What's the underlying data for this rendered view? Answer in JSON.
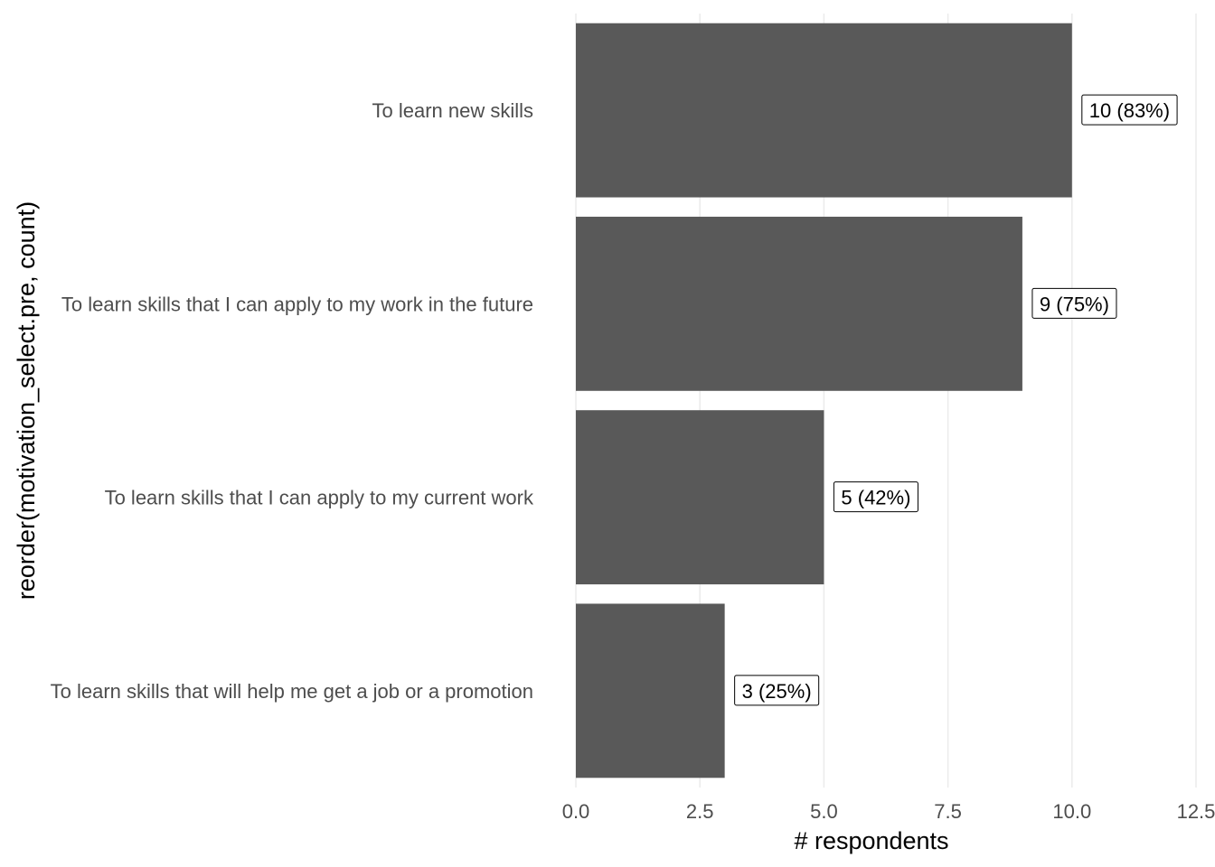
{
  "chart_data": {
    "type": "bar",
    "orientation": "horizontal",
    "categories": [
      "To learn new skills",
      "To learn skills that I can apply to my work in the future",
      "To learn skills that I can apply to my current work",
      "To learn skills that will help me get a job or a promotion"
    ],
    "values": [
      10,
      9,
      5,
      3
    ],
    "data_labels": [
      "10 (83%)",
      "9 (75%)",
      "5 (42%)",
      "3 (25%)"
    ],
    "xlabel": "# respondents",
    "ylabel": "reorder(motivation_select.pre, count)",
    "xlim": [
      0,
      12.5
    ],
    "xticks": [
      0,
      2.5,
      5,
      7.5,
      10,
      12.5
    ],
    "xtick_labels": [
      "0.0",
      "2.5",
      "5.0",
      "7.5",
      "10.0",
      "12.5"
    ],
    "grid": "vertical",
    "legend": "none",
    "colors": {
      "bar": "#595959",
      "grid": "#ebebeb",
      "tick_text": "#4d4d4d",
      "title_text": "#000000"
    }
  }
}
